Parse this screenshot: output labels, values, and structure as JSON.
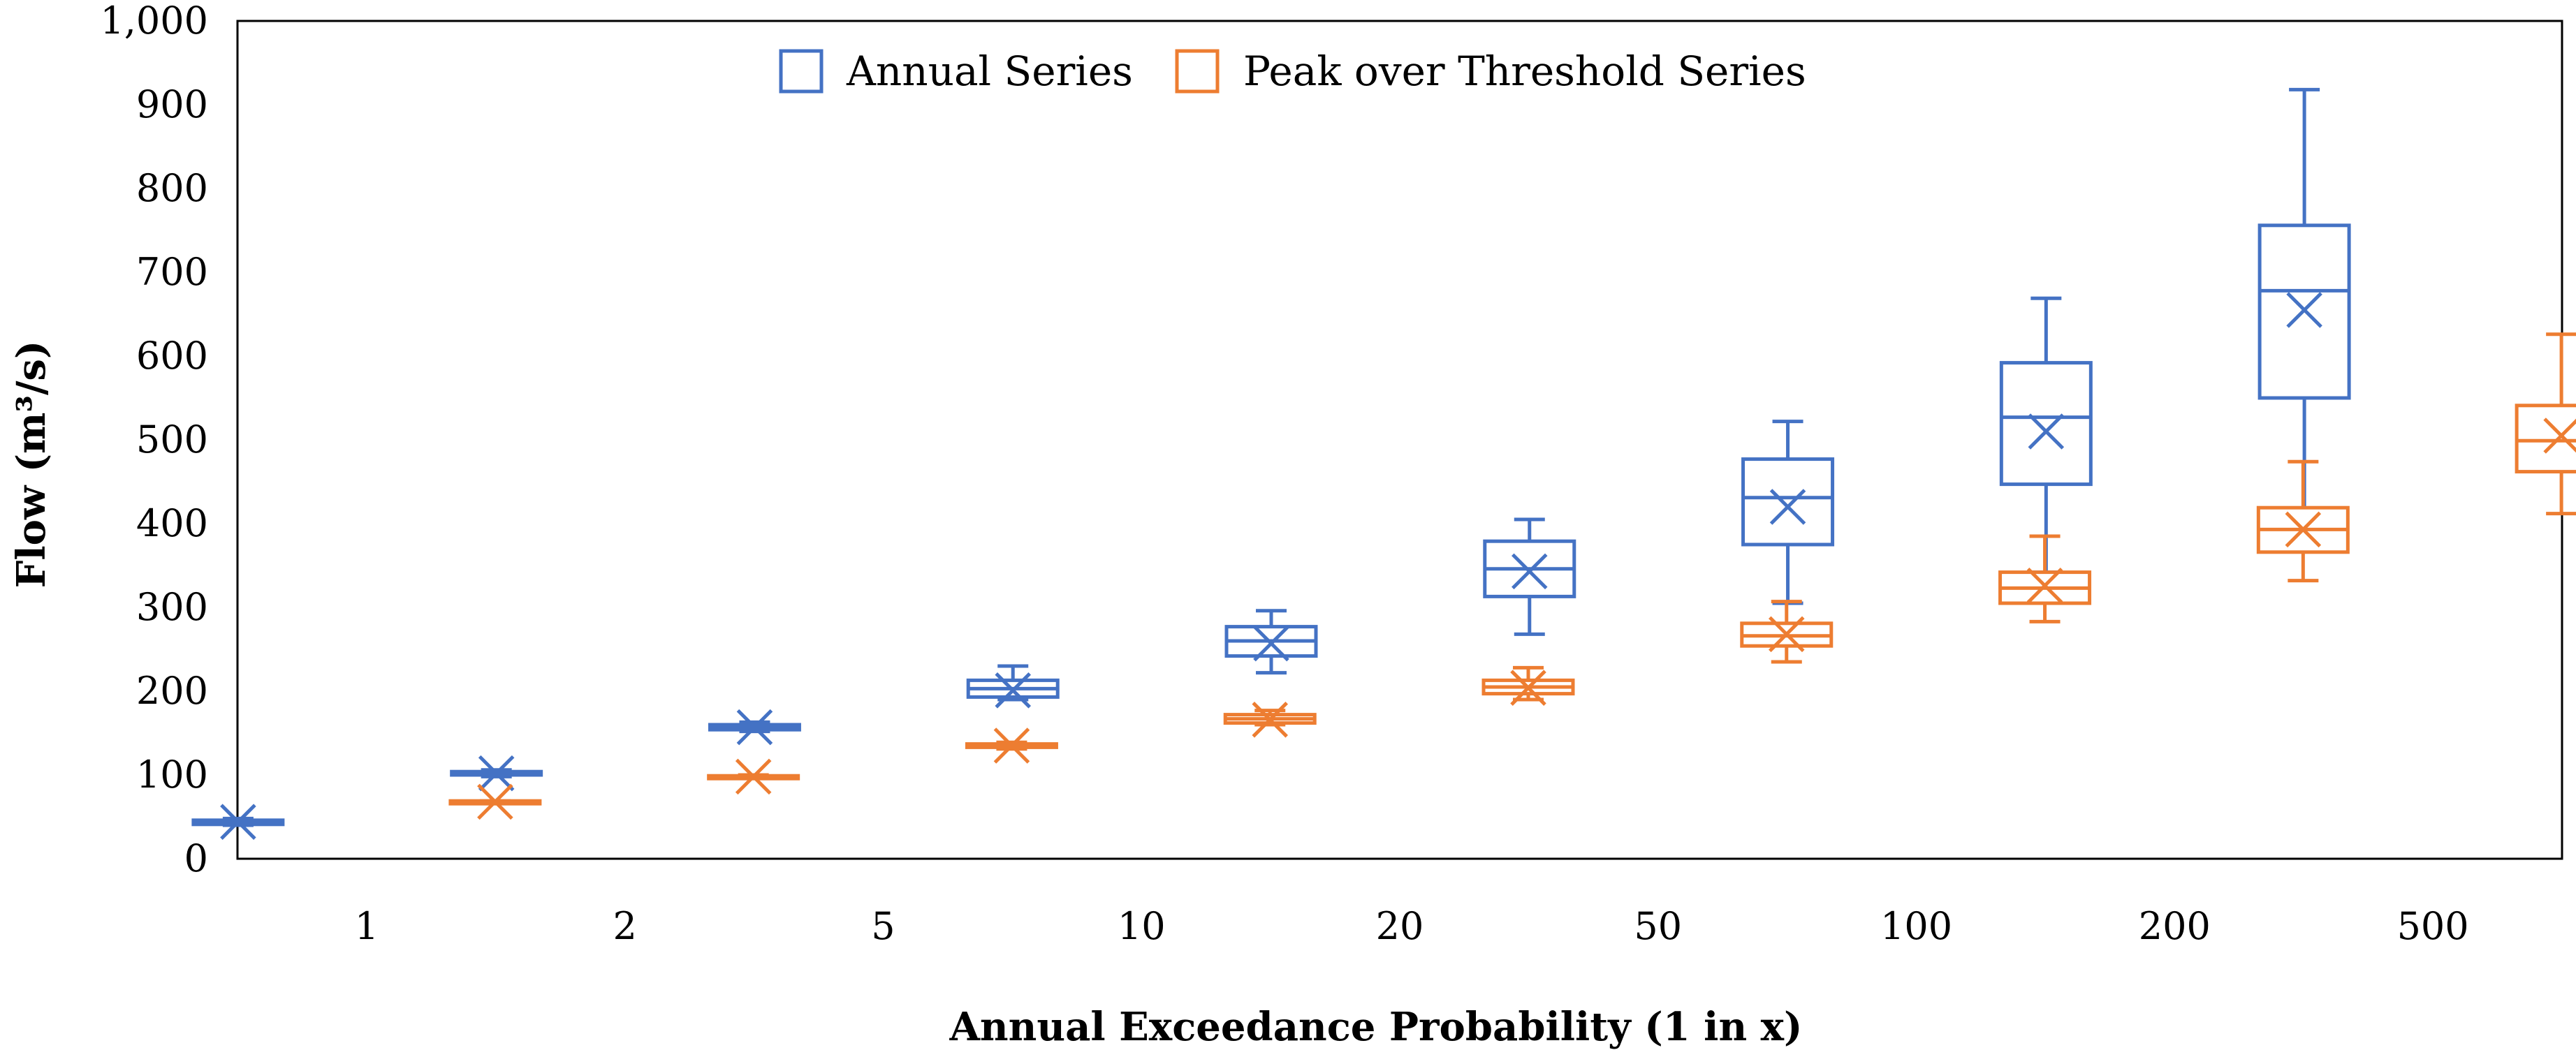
{
  "chart_data": {
    "type": "boxplot",
    "title": "",
    "xlabel": "Annual Exceedance Probability (1 in x)",
    "ylabel": "Flow (m³/s)",
    "ylim": [
      0,
      1000
    ],
    "yticks": [
      "0",
      "100",
      "200",
      "300",
      "400",
      "500",
      "600",
      "700",
      "800",
      "900",
      "1,000"
    ],
    "ytick_values": [
      0,
      100,
      200,
      300,
      400,
      500,
      600,
      700,
      800,
      900,
      1000
    ],
    "categories": [
      "1",
      "2",
      "5",
      "10",
      "20",
      "50",
      "100",
      "200",
      "500"
    ],
    "grid": false,
    "legend_position": "top-center",
    "series": [
      {
        "name": "Annual Series",
        "color": "#4472C4",
        "stats": [
          {
            "min": 40,
            "q1": 41,
            "median": 43,
            "q3": 46,
            "max": 48,
            "mean": 44
          },
          {
            "min": 98,
            "q1": 100,
            "median": 102,
            "q3": 104,
            "max": 106,
            "mean": 102
          },
          {
            "min": 152,
            "q1": 154,
            "median": 157,
            "q3": 160,
            "max": 163,
            "mean": 157
          },
          {
            "min": 190,
            "q1": 193,
            "median": 203,
            "q3": 213,
            "max": 230,
            "mean": 201
          },
          {
            "min": 222,
            "q1": 242,
            "median": 260,
            "q3": 277,
            "max": 296,
            "mean": 257
          },
          {
            "min": 268,
            "q1": 313,
            "median": 346,
            "q3": 379,
            "max": 405,
            "mean": 343
          },
          {
            "min": 305,
            "q1": 375,
            "median": 431,
            "q3": 477,
            "max": 522,
            "mean": 420
          },
          {
            "min": 342,
            "q1": 447,
            "median": 527,
            "q3": 592,
            "max": 669,
            "mean": 510
          },
          {
            "min": 397,
            "q1": 550,
            "median": 678,
            "q3": 756,
            "max": 918,
            "mean": 655
          }
        ]
      },
      {
        "name": "Peak over Threshold Series",
        "color": "#ED7D31",
        "stats": [
          {
            "min": 68,
            "q1": 68,
            "median": 68,
            "q3": 69,
            "max": 69,
            "mean": 68
          },
          {
            "min": 96,
            "q1": 97,
            "median": 98,
            "q3": 99,
            "max": 100,
            "mean": 98
          },
          {
            "min": 131,
            "q1": 133,
            "median": 135,
            "q3": 137,
            "max": 139,
            "mean": 135
          },
          {
            "min": 160,
            "q1": 162,
            "median": 167,
            "q3": 172,
            "max": 177,
            "mean": 166
          },
          {
            "min": 190,
            "q1": 197,
            "median": 205,
            "q3": 213,
            "max": 228,
            "mean": 204
          },
          {
            "min": 235,
            "q1": 254,
            "median": 266,
            "q3": 281,
            "max": 307,
            "mean": 268
          },
          {
            "min": 283,
            "q1": 305,
            "median": 323,
            "q3": 342,
            "max": 385,
            "mean": 326
          },
          {
            "min": 332,
            "q1": 366,
            "median": 393,
            "q3": 419,
            "max": 474,
            "mean": 393
          },
          {
            "min": 412,
            "q1": 462,
            "median": 499,
            "q3": 541,
            "max": 626,
            "mean": 505
          }
        ]
      }
    ]
  }
}
